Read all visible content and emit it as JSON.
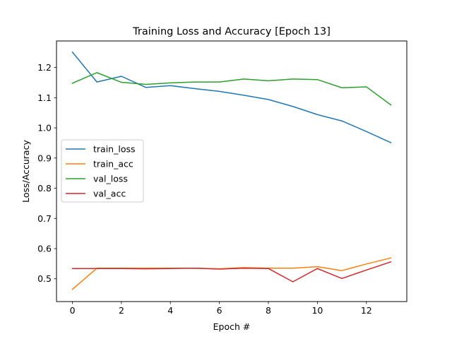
{
  "chart_data": {
    "type": "line",
    "title": "Training Loss and Accuracy [Epoch 13]",
    "xlabel": "Epoch #",
    "ylabel": "Loss/Accuracy",
    "xlim": [
      -0.65,
      13.65
    ],
    "ylim": [
      0.4245,
      1.288
    ],
    "xticks": [
      0,
      2,
      4,
      6,
      8,
      10,
      12
    ],
    "yticks": [
      0.5,
      0.6,
      0.7,
      0.8,
      0.9,
      1.0,
      1.1,
      1.2
    ],
    "ytick_labels": [
      "0.5",
      "0.6",
      "0.7",
      "0.8",
      "0.9",
      "1.0",
      "1.1",
      "1.2"
    ],
    "grid": false,
    "legend_position": "center-left",
    "x": [
      0,
      1,
      2,
      3,
      4,
      5,
      6,
      7,
      8,
      9,
      10,
      11,
      12,
      13
    ],
    "series": [
      {
        "name": "train_loss",
        "color": "#1f77b4",
        "values": [
          1.251,
          1.152,
          1.171,
          1.134,
          1.14,
          1.13,
          1.121,
          1.108,
          1.094,
          1.071,
          1.044,
          1.023,
          0.988,
          0.951
        ]
      },
      {
        "name": "train_acc",
        "color": "#ff7f0e",
        "values": [
          0.465,
          0.535,
          0.535,
          0.535,
          0.535,
          0.535,
          0.533,
          0.537,
          0.535,
          0.535,
          0.54,
          0.527,
          0.549,
          0.569
        ]
      },
      {
        "name": "val_loss",
        "color": "#2ca02c",
        "values": [
          1.148,
          1.183,
          1.151,
          1.144,
          1.149,
          1.152,
          1.152,
          1.162,
          1.156,
          1.162,
          1.16,
          1.133,
          1.136,
          1.076
        ]
      },
      {
        "name": "val_acc",
        "color": "#d62728",
        "values": [
          0.534,
          0.534,
          0.534,
          0.533,
          0.534,
          0.535,
          0.532,
          0.535,
          0.534,
          0.49,
          0.534,
          0.501,
          0.529,
          0.556
        ]
      }
    ]
  }
}
